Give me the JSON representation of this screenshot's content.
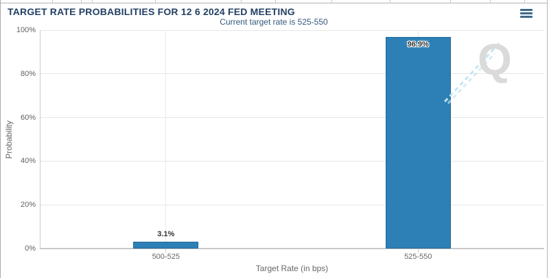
{
  "header": {
    "title": "TARGET RATE PROBABILITIES FOR 12 6 2024 FED MEETING",
    "menu_icon": "hamburger-menu-icon"
  },
  "chart_data": {
    "type": "bar",
    "title": "TARGET RATE PROBABILITIES FOR 12 6 2024 FED MEETING",
    "subtitle": "Current target rate is 525-550",
    "categories": [
      "500-525",
      "525-550"
    ],
    "values": [
      3.1,
      96.9
    ],
    "data_labels": [
      "3.1%",
      "96.9%"
    ],
    "xlabel": "Target Rate (in bps)",
    "ylabel": "Probability",
    "ylim": [
      0,
      100
    ],
    "yticks": [
      0,
      20,
      40,
      60,
      80,
      100
    ],
    "ytick_labels": [
      "0%",
      "20%",
      "40%",
      "60%",
      "80%",
      "100%"
    ],
    "grid": true,
    "legend_position": "none",
    "bar_color": "#2d80b5",
    "bar_border_color": "#24699c"
  },
  "watermark": {
    "letter": "Q"
  },
  "colors": {
    "title_text": "#223f63",
    "subtitle_text": "#33577b",
    "axis_text": "#666666",
    "tick_text": "#606060",
    "data_label_text": "#333333"
  }
}
